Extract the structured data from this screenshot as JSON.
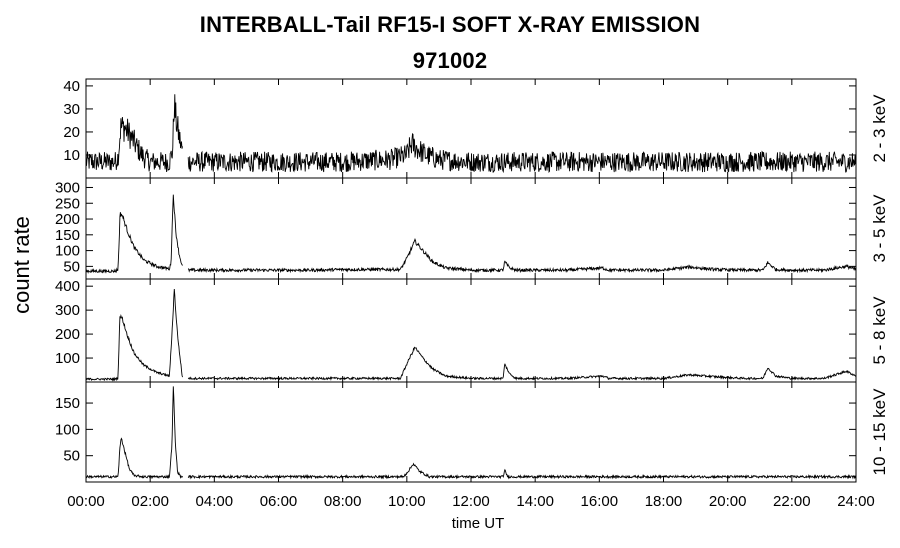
{
  "chart_data": {
    "type": "line",
    "title": "INTERBALL-Tail RF15-I SOFT X-RAY EMISSION",
    "subtitle": "971002",
    "ylabel": "count rate",
    "xlabel": "time UT",
    "x_range_hours": [
      0,
      24
    ],
    "x_tick_labels": [
      "00:00",
      "02:00",
      "04:00",
      "06:00",
      "08:00",
      "10:00",
      "12:00",
      "14:00",
      "16:00",
      "18:00",
      "20:00",
      "22:00",
      "24:00"
    ],
    "x_tick_hours": [
      0,
      2,
      4,
      6,
      8,
      10,
      12,
      14,
      16,
      18,
      20,
      22,
      24
    ],
    "data_gap_hours": [
      3.02,
      3.18
    ],
    "grid": false,
    "panels": [
      {
        "band": "2 - 3 keV",
        "ylim": [
          0,
          43
        ],
        "yticks": [
          10,
          20,
          30,
          40
        ],
        "noise": 3.5,
        "series": {
          "name": "2 - 3 keV",
          "hours": [
            0.0,
            0.9,
            1.0,
            1.08,
            1.2,
            1.4,
            1.6,
            1.8,
            2.0,
            2.3,
            2.6,
            2.7,
            2.75,
            2.8,
            2.9,
            3.0,
            3.2,
            4,
            6,
            8,
            9.5,
            10.0,
            10.15,
            10.3,
            10.6,
            11.0,
            12,
            14,
            16,
            18,
            20,
            22,
            24
          ],
          "values": [
            7,
            7,
            9,
            22,
            22,
            18,
            13,
            9,
            7,
            7,
            7,
            12,
            33,
            26,
            18,
            12,
            7,
            7,
            7,
            7,
            8,
            10,
            15,
            13,
            10,
            8,
            7,
            7,
            7,
            7,
            7,
            7,
            7
          ]
        }
      },
      {
        "band": "3 - 5 keV",
        "ylim": [
          10,
          330
        ],
        "yticks": [
          50,
          100,
          150,
          200,
          250,
          300
        ],
        "noise": 4,
        "series": {
          "name": "3 - 5 keV",
          "hours": [
            0.0,
            0.9,
            1.0,
            1.06,
            1.12,
            1.3,
            1.5,
            1.8,
            2.2,
            2.6,
            2.65,
            2.72,
            2.8,
            2.9,
            3.0,
            3.2,
            5,
            7,
            8,
            9.8,
            10.0,
            10.25,
            10.5,
            10.8,
            11.2,
            12,
            13.0,
            13.05,
            13.2,
            13.4,
            15,
            16.1,
            16.3,
            18,
            18.8,
            19.6,
            20.5,
            21.1,
            21.25,
            21.5,
            22,
            23,
            23.7,
            24
          ],
          "values": [
            35,
            35,
            40,
            215,
            215,
            160,
            110,
            70,
            50,
            42,
            60,
            280,
            160,
            90,
            50,
            38,
            38,
            38,
            40,
            40,
            75,
            130,
            100,
            65,
            45,
            38,
            38,
            65,
            45,
            38,
            38,
            45,
            38,
            38,
            48,
            40,
            38,
            38,
            62,
            40,
            38,
            38,
            50,
            40
          ]
        }
      },
      {
        "band": "5 - 8 keV",
        "ylim": [
          0,
          430
        ],
        "yticks": [
          100,
          200,
          300,
          400
        ],
        "noise": 4,
        "series": {
          "name": "5 - 8 keV",
          "hours": [
            0.0,
            0.9,
            1.0,
            1.05,
            1.12,
            1.3,
            1.5,
            1.8,
            2.2,
            2.6,
            2.68,
            2.75,
            2.85,
            2.95,
            3.0,
            3.2,
            5,
            7,
            9.8,
            10.05,
            10.25,
            10.5,
            10.8,
            11.2,
            12,
            13.0,
            13.05,
            13.2,
            13.4,
            15,
            16.1,
            16.3,
            18,
            18.8,
            19.6,
            20.5,
            21.1,
            21.25,
            21.5,
            22,
            23,
            23.7,
            24
          ],
          "values": [
            12,
            12,
            15,
            270,
            270,
            190,
            120,
            70,
            40,
            25,
            200,
            390,
            200,
            80,
            20,
            15,
            15,
            15,
            15,
            90,
            145,
            100,
            55,
            25,
            15,
            15,
            75,
            35,
            15,
            15,
            25,
            15,
            15,
            30,
            22,
            15,
            15,
            60,
            25,
            15,
            15,
            45,
            25
          ]
        }
      },
      {
        "band": "10 - 15 keV",
        "ylim": [
          0,
          190
        ],
        "yticks": [
          50,
          100,
          150
        ],
        "noise": 2,
        "series": {
          "name": "10 - 15 keV",
          "hours": [
            0.0,
            1.0,
            1.05,
            1.1,
            1.2,
            1.35,
            1.5,
            1.8,
            2.6,
            2.68,
            2.72,
            2.78,
            2.85,
            2.95,
            3.2,
            6,
            9.9,
            10.1,
            10.2,
            10.4,
            10.7,
            12,
            13.0,
            13.05,
            13.15,
            16,
            20,
            24
          ],
          "values": [
            10,
            10,
            60,
            85,
            60,
            25,
            12,
            10,
            10,
            70,
            185,
            80,
            20,
            10,
            10,
            10,
            10,
            25,
            35,
            20,
            10,
            10,
            10,
            22,
            10,
            10,
            10,
            10
          ]
        }
      }
    ]
  }
}
